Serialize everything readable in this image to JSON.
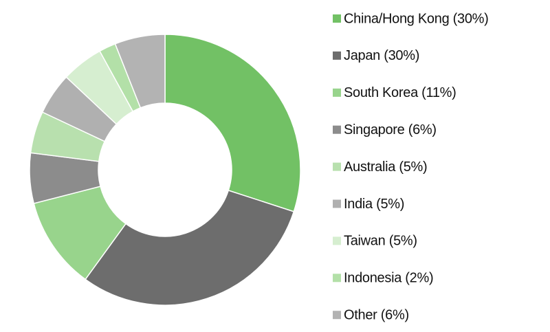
{
  "chart_data": {
    "type": "donut",
    "categories": [
      "China/Hong Kong (30%)",
      "Japan (30%)",
      "South Korea (11%)",
      "Singapore (6%)",
      "Australia (5%)",
      "India (5%)",
      "Taiwan (5%)",
      "Indonesia (2%)",
      "Other (6%)"
    ],
    "values": [
      30,
      30,
      11,
      6,
      5,
      5,
      5,
      2,
      6
    ],
    "colors": [
      "#72c165",
      "#6d6d6d",
      "#98d48c",
      "#8c8c8c",
      "#b8e0ae",
      "#b0b0b0",
      "#d6eed0",
      "#b3e0a8",
      "#b3b3b3"
    ],
    "legend": "right"
  }
}
